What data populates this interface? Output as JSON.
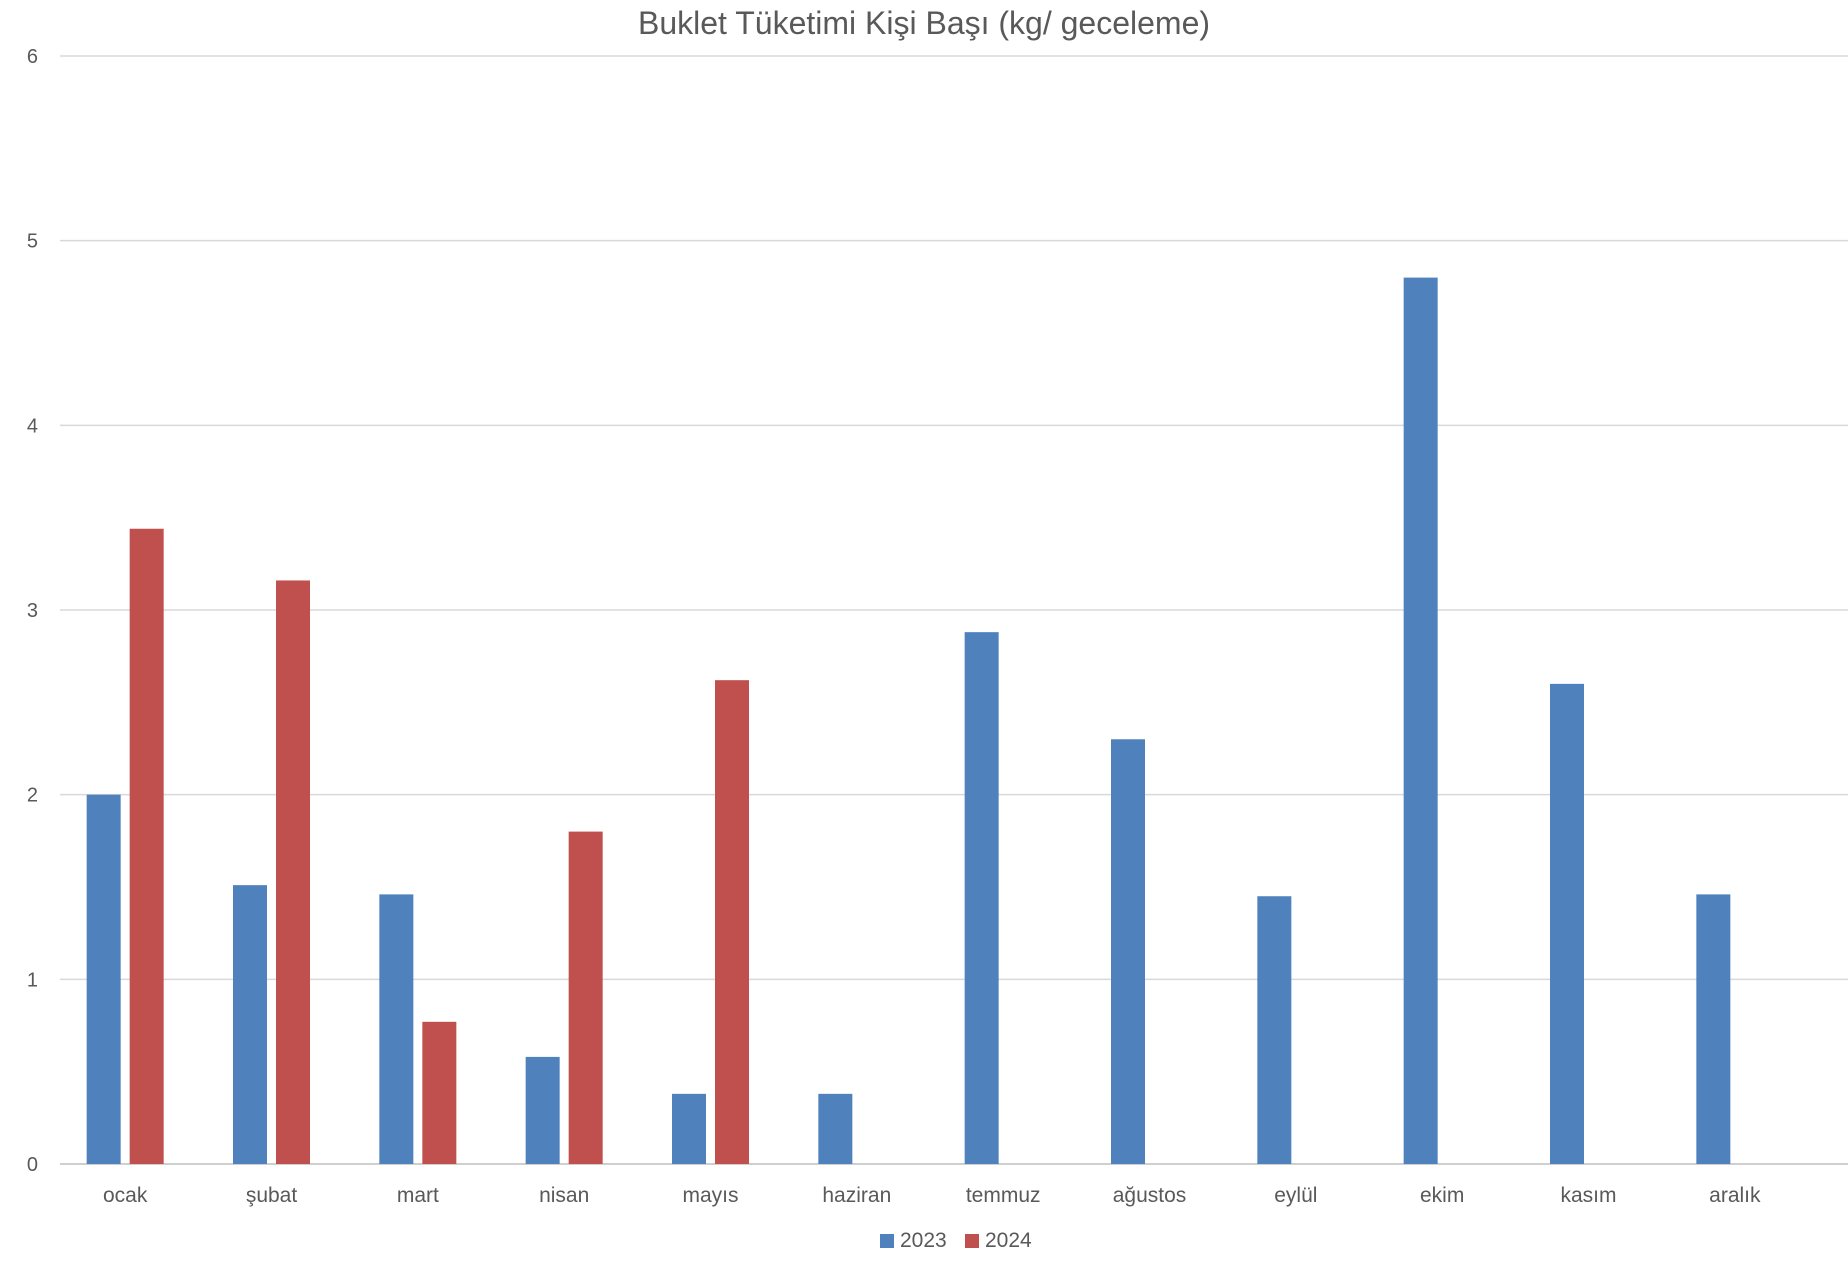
{
  "chart_data": {
    "type": "bar",
    "title": "Buklet Tüketimi Kişi Başı (kg/ geceleme)",
    "xlabel": "",
    "ylabel": "",
    "ylim": [
      0,
      6
    ],
    "yticks": [
      "0",
      "1",
      "2",
      "3",
      "4",
      "5",
      "6"
    ],
    "grid": true,
    "legend_position": "bottom",
    "categories": [
      "ocak",
      "şubat",
      "mart",
      "nisan",
      "mayıs",
      "haziran",
      "temmuz",
      "ağustos",
      "eylül",
      "ekim",
      "kasım",
      "aralık"
    ],
    "series": [
      {
        "name": "2023",
        "color": "#4f81bd",
        "values": [
          2.0,
          1.51,
          1.46,
          0.58,
          0.38,
          0.38,
          2.88,
          2.3,
          1.45,
          4.8,
          2.6,
          1.46
        ]
      },
      {
        "name": "2024",
        "color": "#c0504d",
        "values": [
          3.44,
          3.16,
          0.77,
          1.8,
          2.62,
          null,
          null,
          null,
          null,
          null,
          null,
          null
        ]
      }
    ]
  }
}
